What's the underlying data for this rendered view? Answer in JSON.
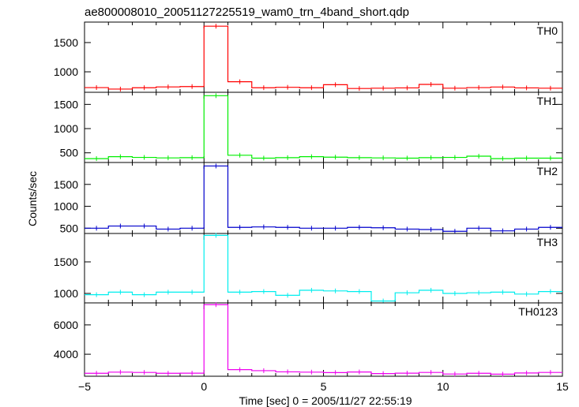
{
  "chart_data": {
    "type": "line",
    "title": "ae800008010_20051127225519_wam0_trn_4band_short.qdp",
    "xlabel": "Time [sec] 0 = 2005/11/27 22:55:19",
    "ylabel": "Counts/sec",
    "xlim": [
      -5,
      15
    ],
    "x_ticks": [
      -5,
      0,
      5,
      10,
      15
    ],
    "x_tick_labels": [
      "−5",
      "0",
      "5",
      "10",
      "15"
    ],
    "x": [
      -4.5,
      -3.5,
      -2.5,
      -1.5,
      -0.5,
      0.5,
      1.5,
      2.5,
      3.5,
      4.5,
      5.5,
      6.5,
      7.5,
      8.5,
      9.5,
      10.5,
      11.5,
      12.5,
      13.5,
      14.5
    ],
    "bin_width": 1,
    "panels": [
      {
        "label": "TH0",
        "color": "#ff0000",
        "ylim": [
          650,
          1850
        ],
        "yticks": [
          1000,
          1500
        ],
        "values": [
          730,
          705,
          728,
          742,
          748,
          1780,
          830,
          728,
          735,
          728,
          780,
          715,
          720,
          725,
          785,
          720,
          730,
          740,
          725,
          720
        ]
      },
      {
        "label": "TH1",
        "color": "#00ee00",
        "ylim": [
          300,
          1750
        ],
        "yticks": [
          500,
          1000,
          1500
        ],
        "values": [
          380,
          420,
          405,
          395,
          400,
          1680,
          450,
          390,
          400,
          420,
          410,
          400,
          395,
          390,
          400,
          405,
          430,
          380,
          390,
          390
        ]
      },
      {
        "label": "TH2",
        "color": "#0000cc",
        "ylim": [
          380,
          2000
        ],
        "yticks": [
          500,
          1000,
          1500
        ],
        "values": [
          500,
          550,
          550,
          480,
          500,
          1920,
          520,
          530,
          520,
          500,
          500,
          520,
          510,
          480,
          470,
          430,
          500,
          440,
          480,
          520
        ]
      },
      {
        "label": "TH3",
        "color": "#00eeee",
        "ylim": [
          850,
          1950
        ],
        "yticks": [
          1000,
          1500
        ],
        "values": [
          980,
          1020,
          980,
          1020,
          1020,
          1920,
          1020,
          1030,
          970,
          1050,
          1040,
          1030,
          880,
          1010,
          1050,
          1000,
          1010,
          1020,
          990,
          1030
        ]
      },
      {
        "label": "TH0123",
        "color": "#ee00ee",
        "ylim": [
          2500,
          7500
        ],
        "yticks": [
          4000,
          6000
        ],
        "values": [
          2700,
          2780,
          2760,
          2700,
          2710,
          7380,
          2950,
          2880,
          2800,
          2780,
          2750,
          2790,
          2680,
          2710,
          2760,
          2650,
          2700,
          2640,
          2720,
          2760
        ]
      }
    ]
  }
}
